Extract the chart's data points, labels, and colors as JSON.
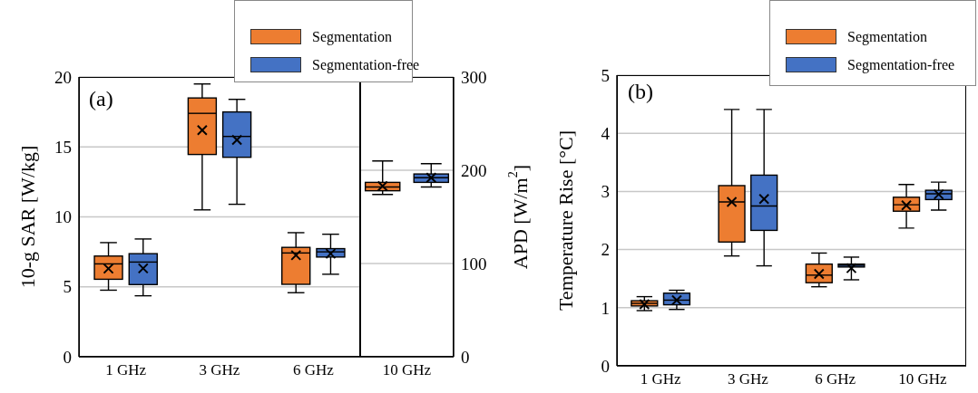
{
  "chart_data": [
    {
      "type": "box",
      "ylabel": "10-g SAR [W/kg]",
      "annotations": [
        "(a)"
      ],
      "categories": [
        "1 GHz",
        "3 GHz",
        "6 GHz"
      ],
      "ylim": [
        0,
        20
      ],
      "yticks": [
        0,
        5,
        10,
        15,
        20
      ],
      "grid": "y",
      "legend": "top right",
      "series": [
        {
          "name": "Segmentation",
          "color": "#ed7d31",
          "boxes": [
            {
              "low": 4.76,
              "q1": 5.54,
              "median": 6.64,
              "q3": 7.2,
              "high": 8.16,
              "mean": 6.3
            },
            {
              "low": 10.5,
              "q1": 14.46,
              "median": 17.4,
              "q3": 18.5,
              "high": 19.5,
              "mean": 16.2
            },
            {
              "low": 4.58,
              "q1": 5.18,
              "median": 7.42,
              "q3": 7.82,
              "high": 8.87,
              "mean": 7.26
            }
          ]
        },
        {
          "name": "Segmentation-free",
          "color": "#4472c4",
          "boxes": [
            {
              "low": 4.36,
              "q1": 5.16,
              "median": 6.77,
              "q3": 7.37,
              "high": 8.42,
              "mean": 6.32
            },
            {
              "low": 10.9,
              "q1": 14.26,
              "median": 15.75,
              "q3": 17.5,
              "high": 18.4,
              "mean": 15.5
            },
            {
              "low": 5.9,
              "q1": 7.13,
              "median": 7.5,
              "q3": 7.73,
              "high": 8.76,
              "mean": 7.37
            }
          ]
        }
      ]
    },
    {
      "type": "box",
      "ylabel": "APD [W/m$^{2}$]",
      "categories": [
        "10 GHz"
      ],
      "ylim": [
        0,
        300
      ],
      "yticks": [
        0,
        100,
        200,
        300
      ],
      "grid": "y",
      "series": [
        {
          "color": "#ed7d31",
          "boxes": [
            {
              "low": 174,
              "q1": 178,
              "median": 182,
              "q3": 187,
              "high": 210,
              "mean": 183
            }
          ]
        },
        {
          "color": "#4472c4",
          "boxes": [
            {
              "low": 182,
              "q1": 187,
              "median": 192,
              "q3": 196,
              "high": 207,
              "mean": 192
            }
          ]
        }
      ]
    },
    {
      "type": "box",
      "ylabel": "Temperature Rise [°C]",
      "annotations": [
        "(b)"
      ],
      "categories": [
        "1 GHz",
        "3 GHz",
        "6 GHz",
        "10 GHz"
      ],
      "ylim": [
        0,
        5
      ],
      "yticks": [
        0,
        1,
        2,
        3,
        4,
        5
      ],
      "grid": "y",
      "legend": "top right",
      "series": [
        {
          "name": "Segmentation",
          "color": "#ed7d31",
          "boxes": [
            {
              "low": 0.95,
              "q1": 1.03,
              "median": 1.075,
              "q3": 1.12,
              "high": 1.19,
              "mean": 1.06
            },
            {
              "low": 1.89,
              "q1": 2.13,
              "median": 2.82,
              "q3": 3.1,
              "high": 4.41,
              "mean": 2.82
            },
            {
              "low": 1.36,
              "q1": 1.43,
              "median": 1.56,
              "q3": 1.75,
              "high": 1.94,
              "mean": 1.58
            },
            {
              "low": 2.37,
              "q1": 2.66,
              "median": 2.77,
              "q3": 2.9,
              "high": 3.12,
              "mean": 2.76
            }
          ]
        },
        {
          "name": "Segmentation-free",
          "color": "#4472c4",
          "boxes": [
            {
              "low": 0.97,
              "q1": 1.05,
              "median": 1.13,
              "q3": 1.25,
              "high": 1.3,
              "mean": 1.13
            },
            {
              "low": 1.72,
              "q1": 2.33,
              "median": 2.75,
              "q3": 3.28,
              "high": 4.41,
              "mean": 2.87
            },
            {
              "low": 1.48,
              "q1": 1.7,
              "median": 1.73,
              "q3": 1.75,
              "high": 1.87,
              "mean": 1.68
            },
            {
              "low": 2.68,
              "q1": 2.86,
              "median": 2.96,
              "q3": 3.02,
              "high": 3.16,
              "mean": 2.95
            }
          ]
        }
      ]
    }
  ]
}
